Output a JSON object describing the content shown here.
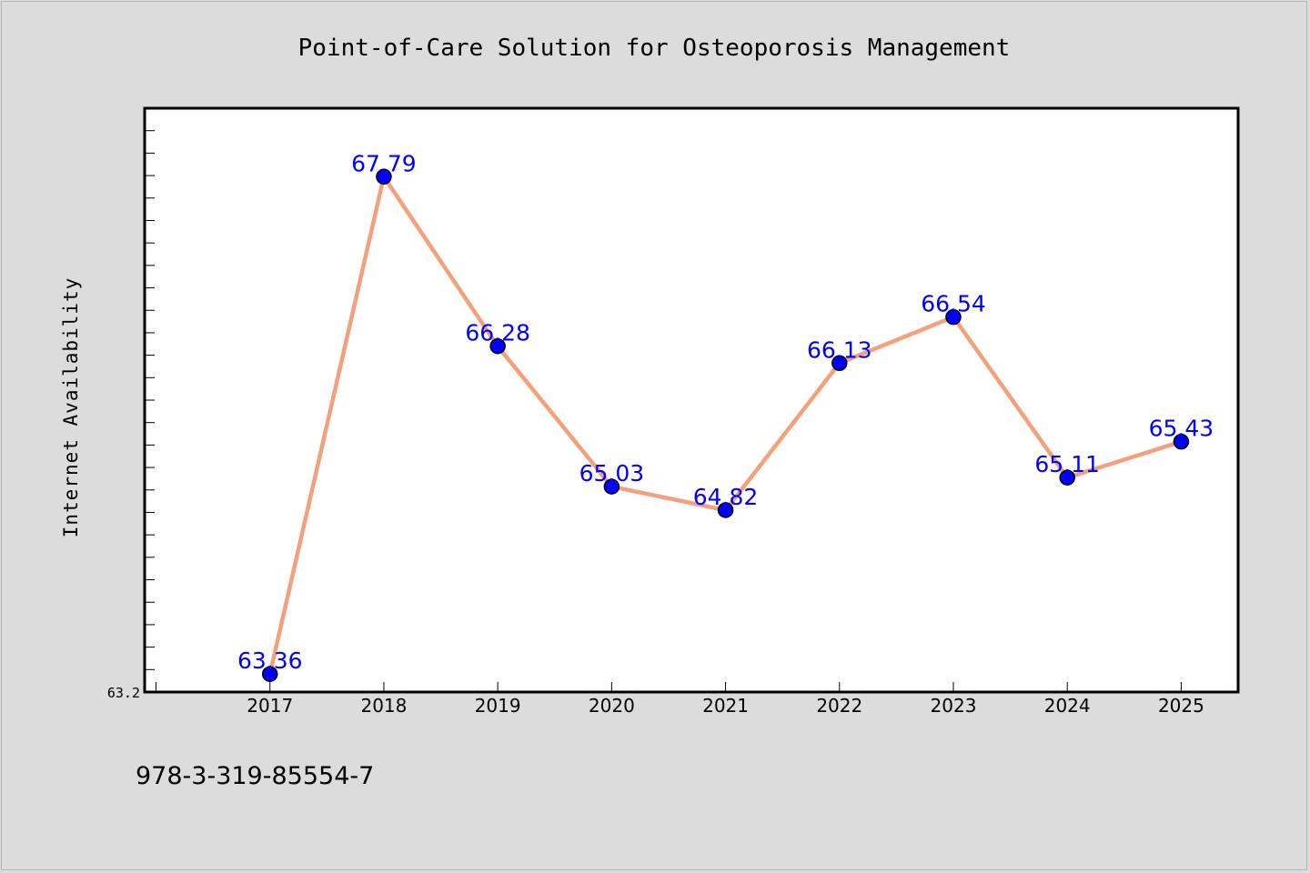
{
  "chart_data": {
    "type": "line",
    "title": "Point-of-Care Solution for Osteoporosis Management",
    "ylabel": "Internet Availability",
    "xlabel": "",
    "x": [
      "2017",
      "2018",
      "2019",
      "2020",
      "2021",
      "2022",
      "2023",
      "2024",
      "2025"
    ],
    "series": [
      {
        "values": [
          63.36,
          67.79,
          66.28,
          65.03,
          64.82,
          66.13,
          66.54,
          65.11,
          65.43
        ]
      }
    ],
    "data_labels": [
      "63.36",
      "67.79",
      "66.28",
      "65.03",
      "64.82",
      "66.13",
      "66.54",
      "65.11",
      "65.43"
    ],
    "y_tick_label": "63.2",
    "ylim": [
      63.2,
      68.4
    ],
    "x_range": [
      2015.9,
      2025.5
    ],
    "grid": false,
    "legend": "none",
    "colors": {
      "line": "#f4a07c",
      "marker": "#0000ff",
      "label": "#0000ff",
      "background": "#dcdcdc",
      "plot_bg": "#ffffff"
    }
  },
  "footer": {
    "text": "978-3-319-85554-7"
  }
}
